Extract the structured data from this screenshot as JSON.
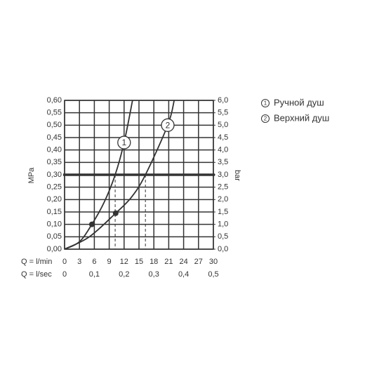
{
  "chart_data": {
    "type": "line",
    "ylabel": "MPa",
    "y2label": "bar",
    "xlabel": "Q = l/min",
    "x2label": "Q = l/sec",
    "xlim": [
      0,
      30
    ],
    "xticks": [
      0,
      3,
      6,
      9,
      12,
      15,
      18,
      21,
      24,
      27,
      30
    ],
    "x2lim": [
      0,
      0.5
    ],
    "x2ticks": [
      0,
      {
        "value": 0.1,
        "label": "0,1"
      },
      {
        "value": 0.2,
        "label": "0,2"
      },
      {
        "value": 0.3,
        "label": "0,3"
      },
      {
        "value": 0.4,
        "label": "0,4"
      },
      {
        "value": 0.5,
        "label": "0,5"
      }
    ],
    "ylim": [
      0,
      0.6
    ],
    "yticks": [
      {
        "value": 0,
        "label": "0,00"
      },
      {
        "value": 0.05,
        "label": "0,05"
      },
      {
        "value": 0.1,
        "label": "0,10"
      },
      {
        "value": 0.15,
        "label": "0,15"
      },
      {
        "value": 0.2,
        "label": "0,20"
      },
      {
        "value": 0.25,
        "label": "0,25"
      },
      {
        "value": 0.3,
        "label": "0,30"
      },
      {
        "value": 0.35,
        "label": "0,35"
      },
      {
        "value": 0.4,
        "label": "0,40"
      },
      {
        "value": 0.45,
        "label": "0,45"
      },
      {
        "value": 0.5,
        "label": "0,50"
      },
      {
        "value": 0.55,
        "label": "0,55"
      },
      {
        "value": 0.6,
        "label": "0,60"
      }
    ],
    "y2lim": [
      0,
      6
    ],
    "y2ticks": [
      {
        "value": 0,
        "label": "0,0"
      },
      {
        "value": 0.5,
        "label": "0,5"
      },
      {
        "value": 1,
        "label": "1,0"
      },
      {
        "value": 1.5,
        "label": "1,5"
      },
      {
        "value": 2,
        "label": "2,0"
      },
      {
        "value": 2.5,
        "label": "2,5"
      },
      {
        "value": 3,
        "label": "3,0"
      },
      {
        "value": 3.5,
        "label": "3,5"
      },
      {
        "value": 4,
        "label": "4,0"
      },
      {
        "value": 4.5,
        "label": "4,5"
      },
      {
        "value": 5,
        "label": "5,0"
      },
      {
        "value": 5.5,
        "label": "5,5"
      },
      {
        "value": 6,
        "label": "6,0"
      }
    ],
    "grid": true,
    "highlight_y": 0.3,
    "color": "#333333",
    "series": [
      {
        "name": "Ручной душ",
        "label": "1",
        "color": "#333333",
        "x": [
          0,
          3,
          5.5,
          8,
          10.2,
          12,
          13.7
        ],
        "values": [
          0,
          0.03,
          0.1,
          0.19,
          0.3,
          0.43,
          0.6
        ]
      },
      {
        "name": "Верхний душ",
        "label": "2",
        "color": "#333333",
        "x": [
          0,
          5,
          10.3,
          13.5,
          16.3,
          20.8,
          22.1
        ],
        "values": [
          0,
          0.05,
          0.145,
          0.21,
          0.3,
          0.5,
          0.6
        ]
      }
    ],
    "points": [
      {
        "x": 5.5,
        "y": 0.1
      },
      {
        "x": 10.3,
        "y": 0.145
      }
    ]
  }
}
